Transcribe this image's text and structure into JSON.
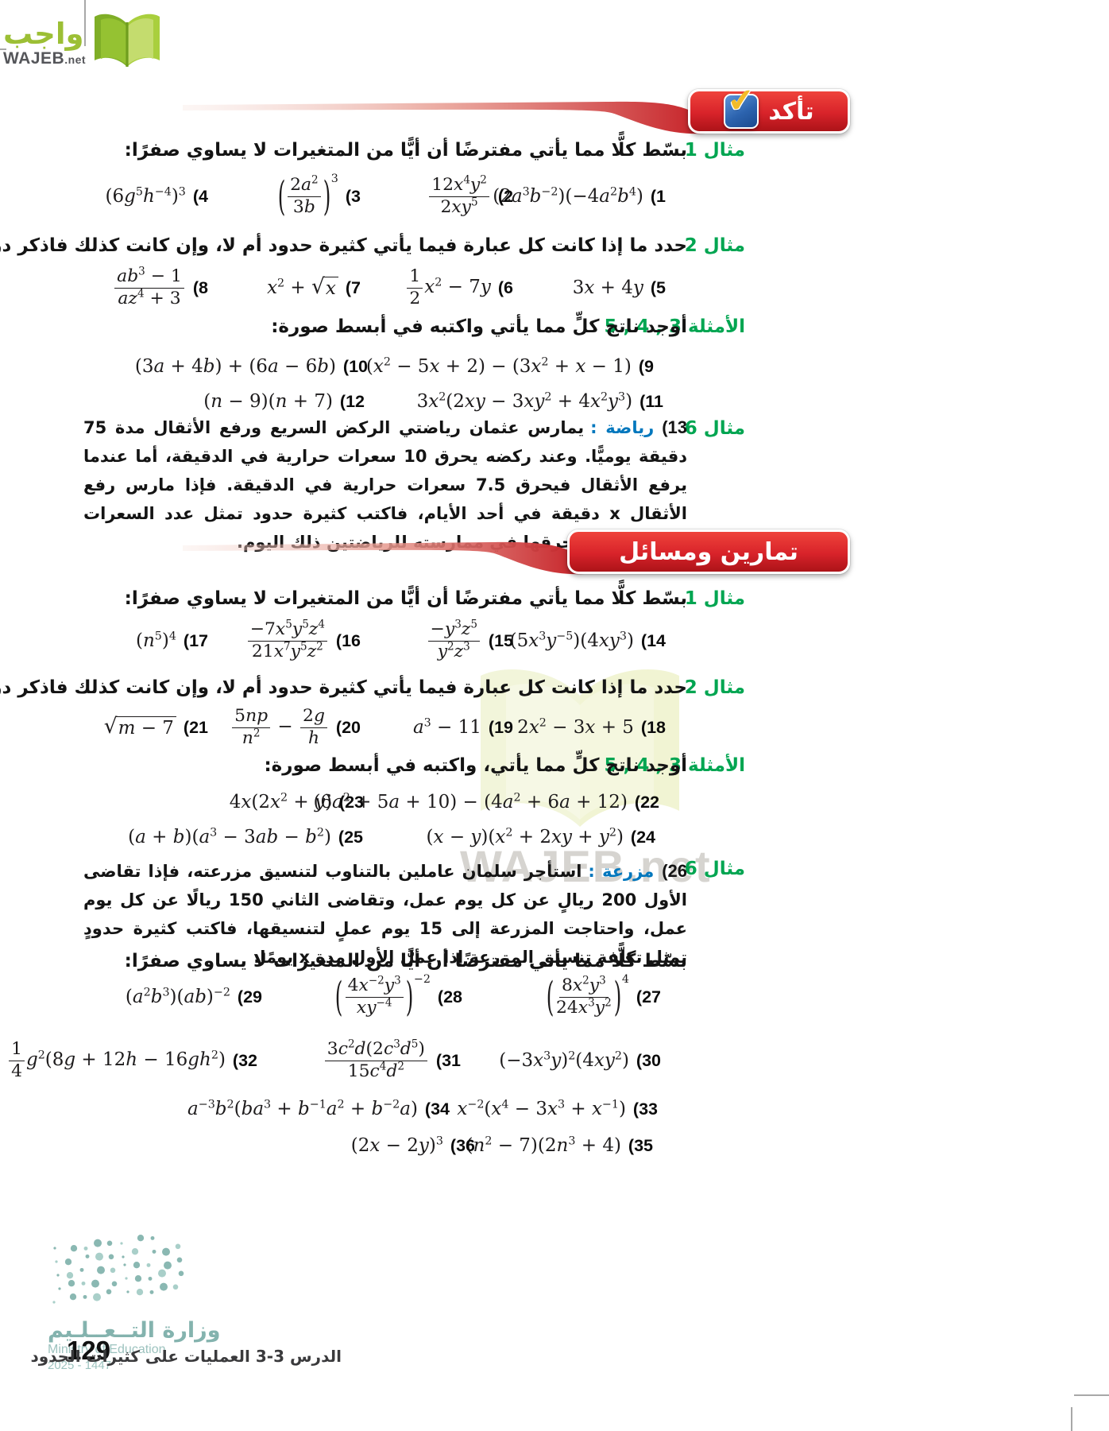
{
  "logo": {
    "brand_ar": "واجب",
    "brand_en": "WAJEB",
    "brand_tld": ".net"
  },
  "watermark": {
    "text": "WAJEB.net"
  },
  "banner_check": {
    "title": "تأكد"
  },
  "banner_exercises": {
    "title": "تمارين ومسائل"
  },
  "labels": {
    "check_example1": "مثال 1",
    "check_example2": "مثال 2",
    "check_examples345": "الأمثلة 3 , 4 , 5",
    "check_example6": "مثال 6",
    "ex_example1": "مثال 1",
    "ex_example2": "مثال 2",
    "ex_examples345": "الأمثلة 3 , 4 , 5",
    "ex_example6": "مثال 6"
  },
  "prompts": {
    "simplify1": "بسّط كلًّا مما يأتي مفترضًا أن أيًّا من المتغيرات لا يساوي صفرًا:",
    "polynomial1": "حدد ما إذا كانت كل عبارة فيما يأتي كثيرة حدود أم لا، وإن كانت كذلك فاذكر درجتها:",
    "product1": "أوجد ناتج كلٍّ مما يأتي واكتبه في أبسط صورة:",
    "simplify2": "بسّط كلًّا مما يأتي مفترضًا أن أيًّا من المتغيرات لا يساوي صفرًا:",
    "polynomial2": "حدد ما إذا كانت كل عبارة فيما يأتي كثيرة حدود أم لا، وإن كانت كذلك فاذكر درجتها:",
    "product2": "أوجد ناتج كلٍّ مما يأتي، واكتبه في أبسط صورة:",
    "simplify3": "بسّط كلًّا مما يأتي مفترضًا أن أيًّا من المتغيرات لا يساوي صفرًا:"
  },
  "word_problems": {
    "p13": {
      "number": "(13",
      "tag": "رياضة :",
      "text": "يمارس عثمان رياضتي الركض السريع ورفع الأثقال مدة 75 دقيقة يوميًّا. وعند ركضه يحرق 10 سعرات حرارية في الدقيقة، أما عندما يرفع الأثقال فيحرق 7.5 سعرات حرارية في الدقيقة. فإذا مارس رفع الأثقال x دقيقة في أحد الأيام، فاكتب كثيرة حدود تمثل عدد السعرات الحرارية التي حرقها في ممارسته للرياضتين ذلك اليوم."
    },
    "p26": {
      "number": "(26",
      "tag": "مزرعة :",
      "text": "استأجر سلمان عاملين بالتناوب لتنسيق مزرعته، فإذا تقاضى الأول 200 ريالٍ عن كل يوم عمل، وتقاضى الثاني 150 ريالًا عن كل يوم عمل، واحتاجت المزرعة إلى 15 يوم عملٍ لتنسيقها، فاكتب كثيرة حدودٍ تمثل تكلفة تنسيق المزرعة إذا عمل الأول مدة x يومًا."
    }
  },
  "problem_rows": {
    "r1": {
      "items": [
        {
          "n": 1,
          "m": "(2a^{3}b^{−2})(−4a^{2}b^{4})"
        },
        {
          "n": 2,
          "m": "frac{12x^{4}y^{2}}{2xy^{5}}"
        },
        {
          "n": 3,
          "m": "big{frac{2a^{2}}{3b}}^{3}"
        },
        {
          "n": 4,
          "m": "(6g^{5}h^{−4})^{3}"
        }
      ]
    },
    "r2": {
      "items": [
        {
          "n": 5,
          "m": "3x + 4y"
        },
        {
          "n": 6,
          "m": "frac{1}{2}x^{2} − 7y"
        },
        {
          "n": 7,
          "m": "x^{2} + sqrt{x}"
        },
        {
          "n": 8,
          "m": "frac{ab^{3} − 1}{az^{4} + 3}"
        }
      ]
    },
    "r3": {
      "items": [
        {
          "n": 9,
          "m": "(x^{2} − 5x + 2) − (3x^{2} + x − 1)"
        },
        {
          "n": 10,
          "m": "(3a + 4b) + (6a − 6b)"
        }
      ]
    },
    "r4": {
      "items": [
        {
          "n": 11,
          "m": "3x^{2}(2xy − 3xy^{2} + 4x^{2}y^{3})"
        },
        {
          "n": 12,
          "m": "(n − 9)(n + 7)"
        }
      ]
    },
    "r5": {
      "items": [
        {
          "n": 14,
          "m": "(5x^{3}y^{−5})(4xy^{3})"
        },
        {
          "n": 15,
          "m": "frac{−y^{3}z^{5}}{y^{2}z^{3}}"
        },
        {
          "n": 16,
          "m": "frac{−7x^{5}y^{5}z^{4}}{21x^{7}y^{5}z^{2}}"
        },
        {
          "n": 17,
          "m": "(n^{5})^{4}"
        }
      ]
    },
    "r6": {
      "items": [
        {
          "n": 18,
          "m": "2x^{2} − 3x + 5"
        },
        {
          "n": 19,
          "m": "a^{3} − 11"
        },
        {
          "n": 20,
          "m": "frac{5np}{n^{2}} − frac{2g}{h}"
        },
        {
          "n": 21,
          "m": "sqrt{m − 7}"
        }
      ]
    },
    "r7": {
      "items": [
        {
          "n": 22,
          "m": "(6a^{2} + 5a + 10) − (4a^{2} + 6a + 12)"
        },
        {
          "n": 23,
          "m": "4x(2x^{2} + y)"
        }
      ]
    },
    "r8": {
      "items": [
        {
          "n": 24,
          "m": "(x − y)(x^{2} + 2xy + y^{2})"
        },
        {
          "n": 25,
          "m": "(a + b)(a^{3} − 3ab − b^{2})"
        }
      ]
    },
    "r9": {
      "items": [
        {
          "n": 27,
          "m": "big{frac{8x^{2}y^{3}}{24x^{3}y^{2}}}^{4}"
        },
        {
          "n": 28,
          "m": "big{frac{4x^{−2}y^{3}}{xy^{−4}}}^{−2}"
        },
        {
          "n": 29,
          "m": "(a^{2}b^{3})(ab)^{−2}"
        }
      ]
    },
    "r10": {
      "items": [
        {
          "n": 30,
          "m": "(−3x^{3}y)^{2}(4xy^{2})"
        },
        {
          "n": 31,
          "m": "frac{3c^{2}d(2c^{3}d^{5})}{15c^{4}d^{2}}"
        },
        {
          "n": 32,
          "m": "frac{1}{4}g^{2}(8g + 12h − 16gh^{2})"
        }
      ]
    },
    "r11": {
      "items": [
        {
          "n": 33,
          "m": "x^{−2}(x^{4} − 3x^{3} + x^{−1})"
        },
        {
          "n": 34,
          "m": "a^{−3}b^{2}(ba^{3} + b^{−1}a^{2} + b^{−2}a)"
        }
      ]
    },
    "r12": {
      "items": [
        {
          "n": 35,
          "m": "(n^{2} − 7)(2n^{3} + 4)"
        },
        {
          "n": 36,
          "m": "(2x − 2y)^{3}"
        }
      ]
    }
  },
  "footer": {
    "ministry_ar": "وزارة التــعــلـيم",
    "ministry_en": "Ministry of Education",
    "year": "2025 - 1447",
    "page_number": "129",
    "lesson": "الدرس 3-3  العمليات على كثيرات الحدود"
  },
  "colors": {
    "banner_red": "#d8232a",
    "label_green": "#00a551",
    "tag_blue": "#0077bd",
    "logo_green": "#9cbf35",
    "ministry_teal": "#8fbcb7"
  }
}
